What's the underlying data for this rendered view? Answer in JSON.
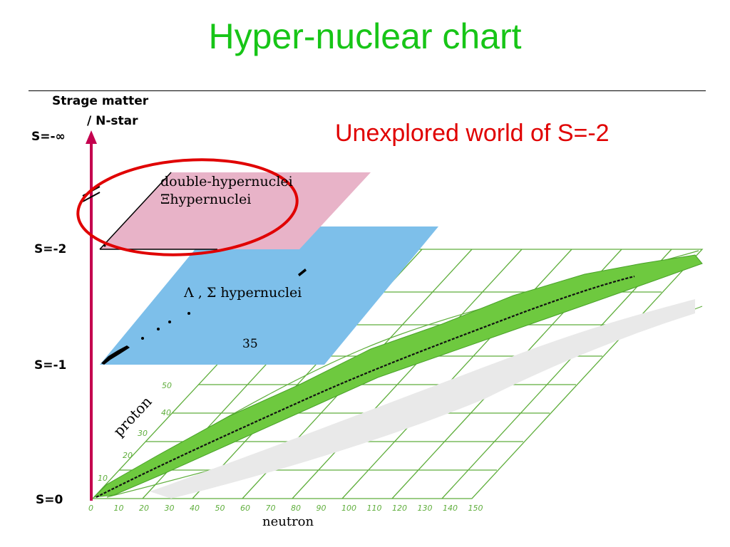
{
  "slide": {
    "title": "Hyper-nuclear chart",
    "subtitle": "Unexplored world of S=-2"
  },
  "axis": {
    "top_label_line1": "Strage matter",
    "top_label_line2": "/ N-star",
    "levels": [
      "S=-∞",
      "S=-2",
      "S=-1",
      "S=0"
    ]
  },
  "planes": {
    "s2_line1": "double-hypernuclei",
    "s2_line2": "Ξhypernuclei",
    "s1_label": "Λ , Σ  hypernuclei",
    "s1_count": "35"
  },
  "grid": {
    "proton_label": "proton",
    "proton_ticks": [
      "10",
      "20",
      "30",
      "40",
      "50"
    ],
    "neutron_label": "neutron",
    "neutron_ticks": [
      "0",
      "10",
      "20",
      "30",
      "40",
      "50",
      "60",
      "70",
      "80",
      "90",
      "100",
      "110",
      "120",
      "130",
      "140",
      "150"
    ]
  },
  "colors": {
    "title": "#17c517",
    "subtitle": "#e00000",
    "axis": "#c4004e",
    "s2_plane": "#e8b3c8",
    "s1_plane": "#7dbfea",
    "grid": "#5fae3c",
    "band": "#6ec93f",
    "circle": "#e00000"
  }
}
